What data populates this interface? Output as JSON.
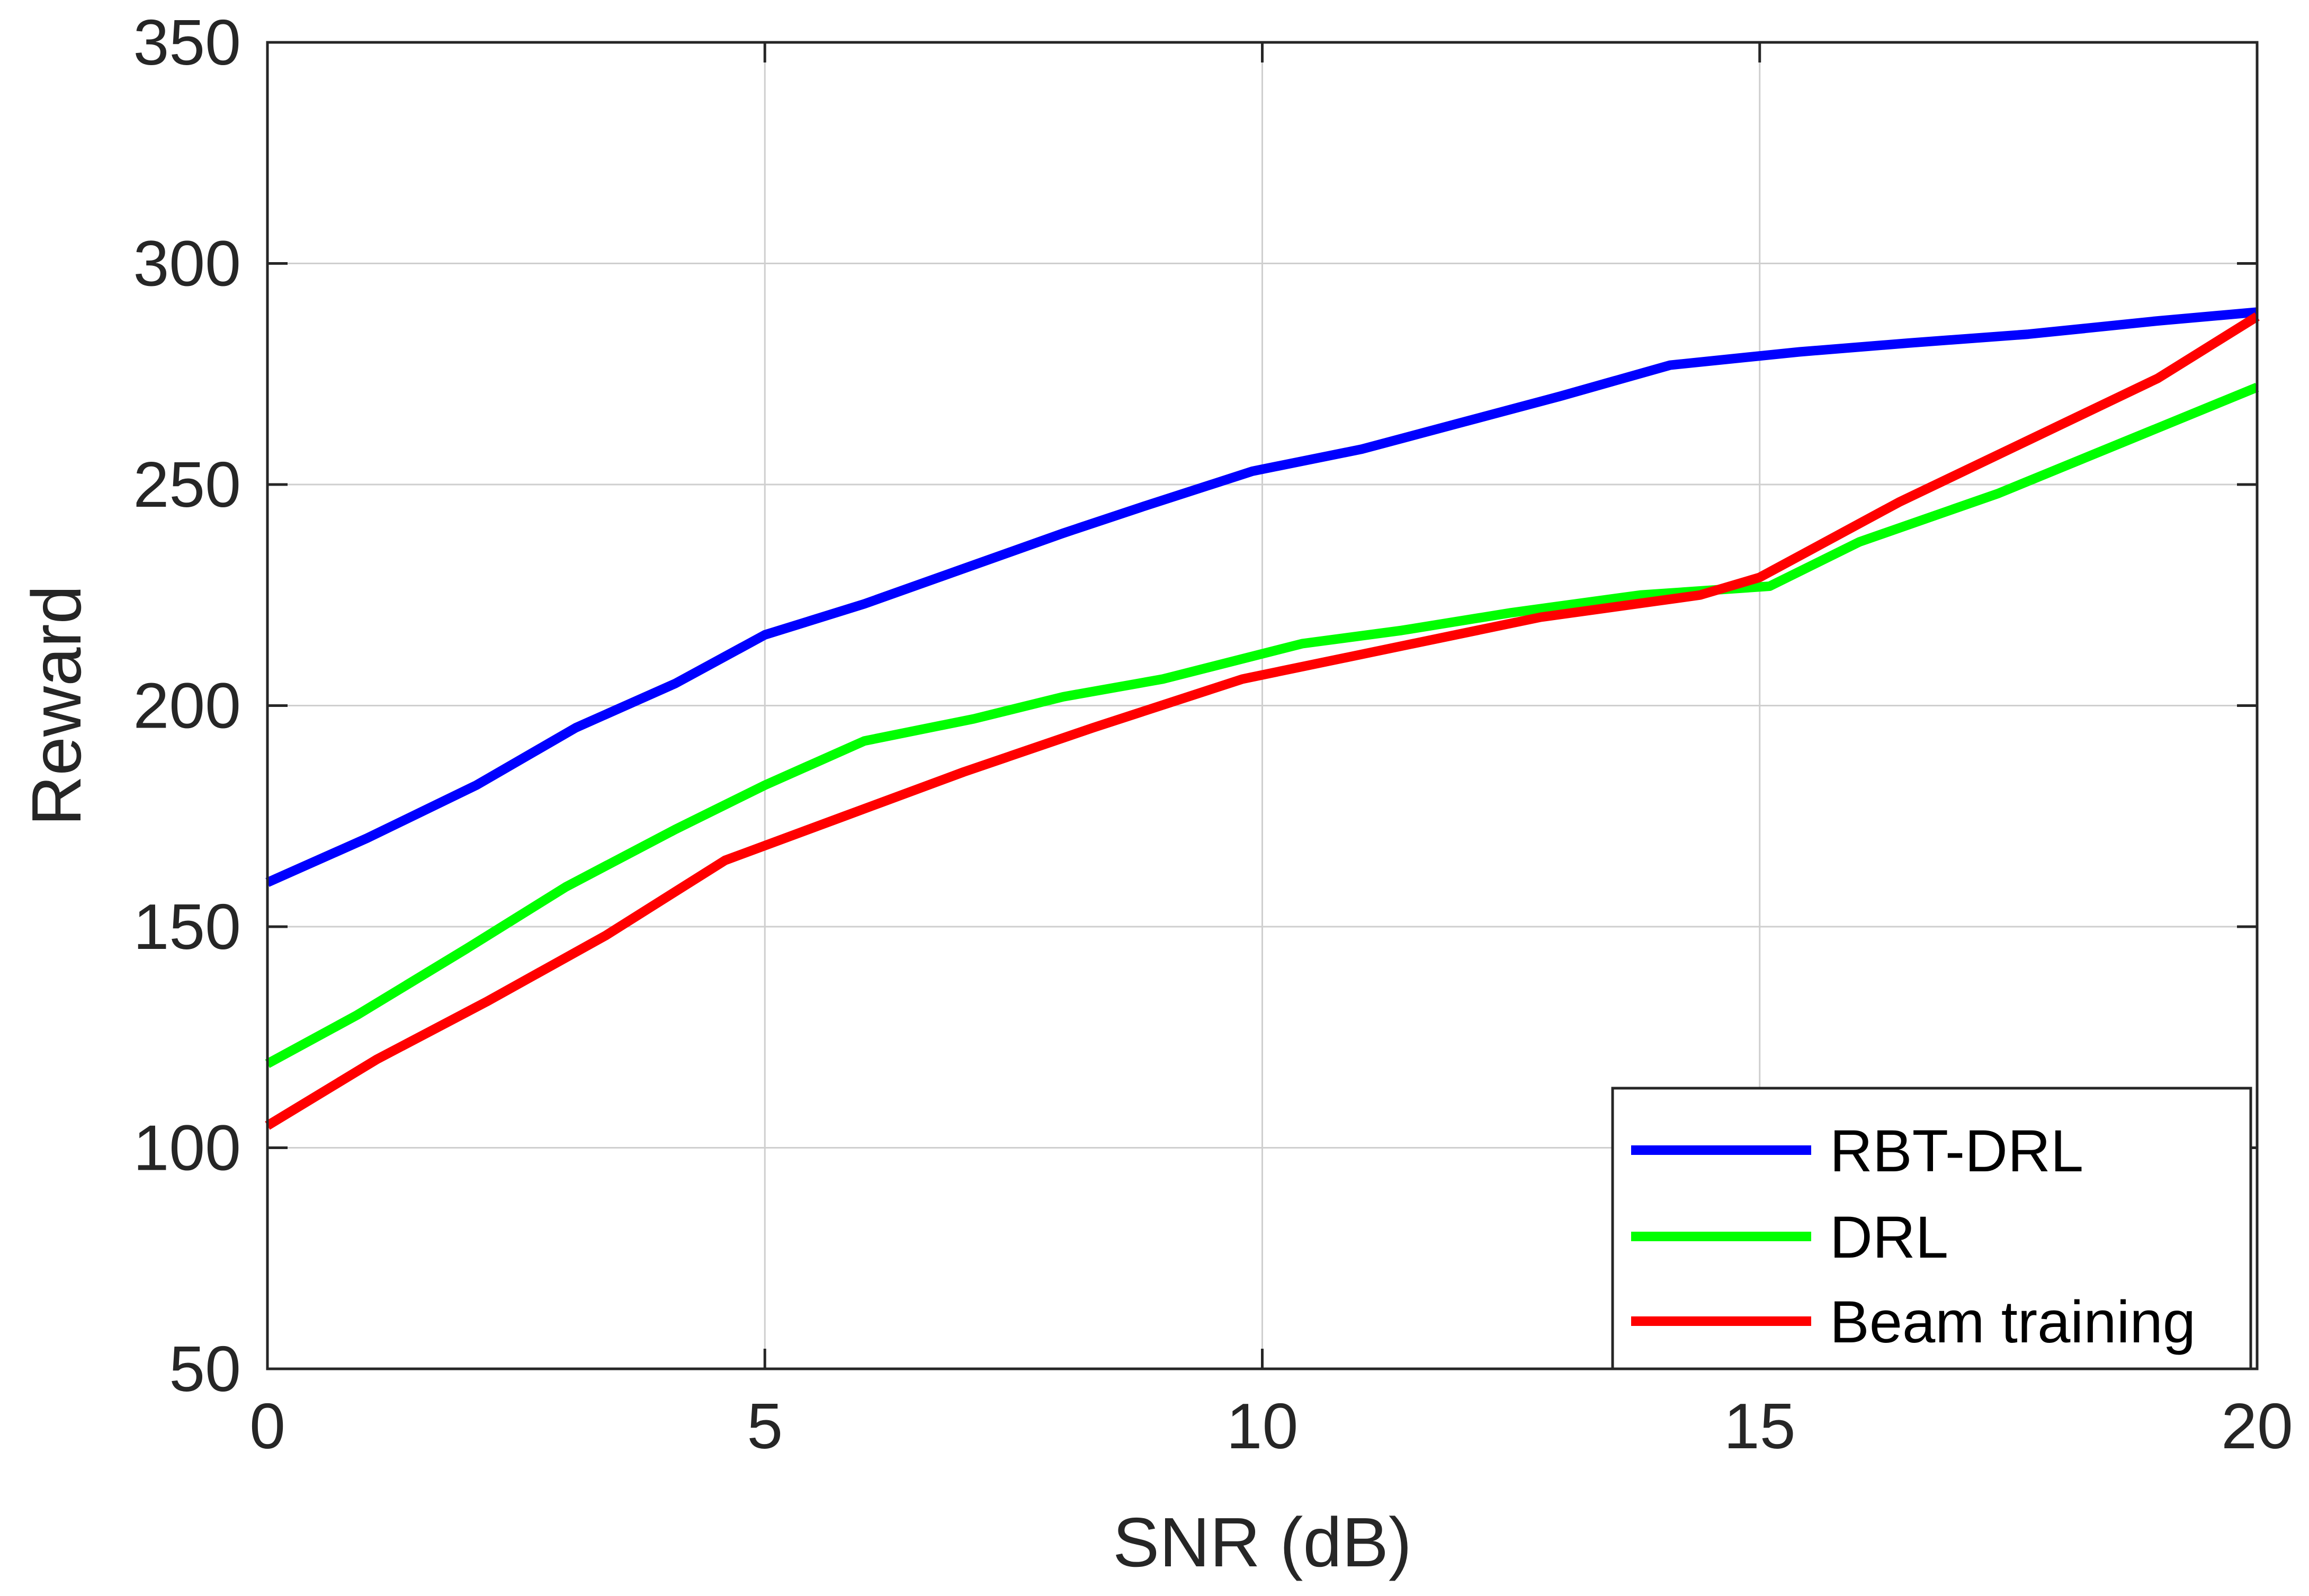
{
  "chart_data": {
    "type": "line",
    "title": "",
    "xlabel": "SNR (dB)",
    "ylabel": "Reward",
    "xlim": [
      0,
      20
    ],
    "ylim": [
      50,
      350
    ],
    "xticks": [
      0,
      5,
      10,
      15,
      20
    ],
    "yticks": [
      50,
      100,
      150,
      200,
      250,
      300,
      350
    ],
    "grid": true,
    "legend_position": "bottom-right",
    "series": [
      {
        "name": "RBT-DRL",
        "color": "#0000ff",
        "x": [
          0,
          1,
          2.1,
          3.1,
          4.1,
          5,
          6,
          7,
          8,
          8.8,
          9.9,
          11,
          12,
          13,
          14.1,
          15.4,
          16.5,
          17.7,
          19,
          20
        ],
        "y": [
          160,
          170,
          182,
          195,
          205,
          216,
          223,
          231,
          239,
          245,
          253,
          258,
          264,
          270,
          277,
          280,
          282,
          284,
          287,
          289
        ]
      },
      {
        "name": "DRL",
        "color": "#00ff00",
        "x": [
          0,
          0.9,
          2,
          3,
          4.1,
          5,
          6,
          7.1,
          8,
          9,
          10.4,
          11.4,
          12.5,
          13.8,
          15.1,
          16,
          17.4,
          18.7,
          20
        ],
        "y": [
          119,
          130,
          145,
          159,
          172,
          182,
          192,
          197,
          202,
          206,
          214,
          217,
          221,
          225,
          227,
          237,
          248,
          260,
          272
        ]
      },
      {
        "name": "Beam training",
        "color": "#ff0000",
        "x": [
          0,
          1.1,
          2.2,
          3.4,
          4.6,
          5.8,
          7,
          8.3,
          9.8,
          11.3,
          12.8,
          14.4,
          15,
          16.4,
          17.7,
          19,
          20
        ],
        "y": [
          105,
          120,
          133,
          148,
          165,
          175,
          185,
          195,
          206,
          213,
          220,
          225,
          229,
          246,
          260,
          274,
          288
        ]
      }
    ]
  }
}
